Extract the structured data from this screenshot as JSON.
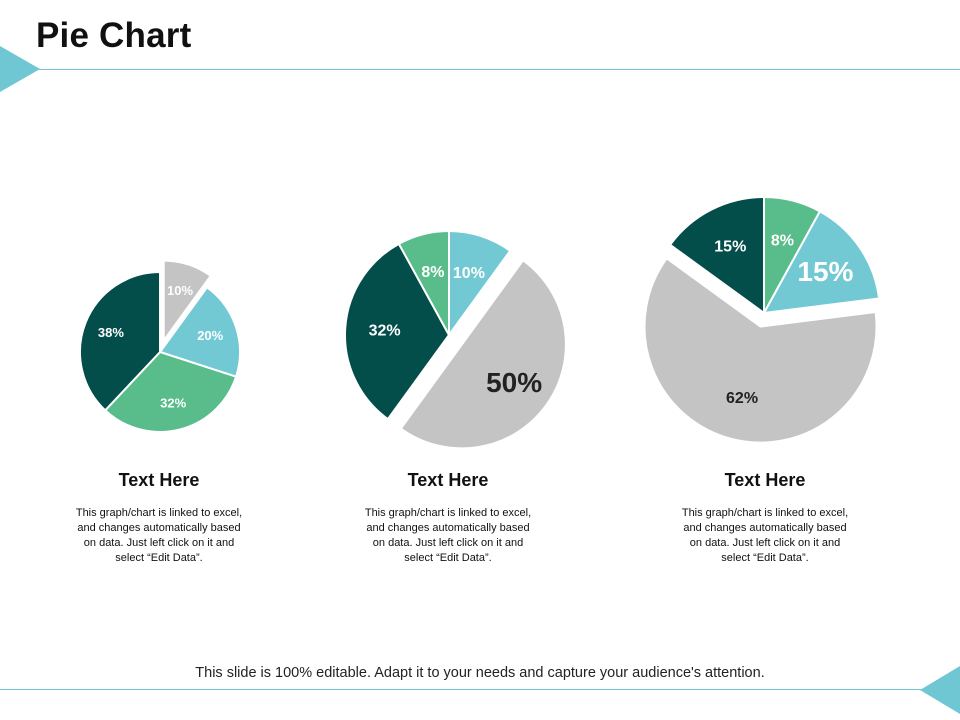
{
  "slide": {
    "title": "Pie Chart",
    "footer": "This slide is 100% editable. Adapt it to your needs and capture your audience's attention."
  },
  "colors": {
    "accent": "#6fc7d3",
    "dark_teal": "#034d4a",
    "green": "#58bd8a",
    "light_blue": "#72c9d4",
    "gray": "#c4c4c4"
  },
  "panels": [
    {
      "heading": "Text Here",
      "body": [
        "This graph/chart is linked to excel,",
        "and changes automatically based",
        "on data. Just left click on it and",
        "select “Edit Data”."
      ]
    },
    {
      "heading": "Text Here",
      "body": [
        "This graph/chart is linked to excel,",
        "and changes automatically based",
        "on data. Just left click on it and",
        "select “Edit Data”."
      ]
    },
    {
      "heading": "Text Here",
      "body": [
        "This graph/chart is linked to excel,",
        "and changes automatically based",
        "on data. Just left click on it and",
        "select “Edit Data”."
      ]
    }
  ],
  "chart_data": [
    {
      "type": "pie",
      "title": "",
      "slices": [
        {
          "label": "10%",
          "value": 10,
          "color": "#c4c4c4",
          "exploded": true
        },
        {
          "label": "20%",
          "value": 20,
          "color": "#72c9d4",
          "exploded": false
        },
        {
          "label": "32%",
          "value": 32,
          "color": "#58bd8a",
          "exploded": false
        },
        {
          "label": "38%",
          "value": 38,
          "color": "#034d4a",
          "exploded": false
        }
      ]
    },
    {
      "type": "pie",
      "title": "",
      "slices": [
        {
          "label": "10%",
          "value": 10,
          "color": "#72c9d4",
          "exploded": false
        },
        {
          "label": "50%",
          "value": 50,
          "color": "#c4c4c4",
          "exploded": true
        },
        {
          "label": "32%",
          "value": 32,
          "color": "#034d4a",
          "exploded": false
        },
        {
          "label": "8%",
          "value": 8,
          "color": "#58bd8a",
          "exploded": false
        }
      ]
    },
    {
      "type": "pie",
      "title": "",
      "slices": [
        {
          "label": "8%",
          "value": 8,
          "color": "#58bd8a",
          "exploded": false
        },
        {
          "label": "15%",
          "value": 15,
          "color": "#72c9d4",
          "exploded": false
        },
        {
          "label": "62%",
          "value": 62,
          "color": "#c4c4c4",
          "exploded": true
        },
        {
          "label": "15%",
          "value": 15,
          "color": "#034d4a",
          "exploded": false
        }
      ]
    }
  ]
}
